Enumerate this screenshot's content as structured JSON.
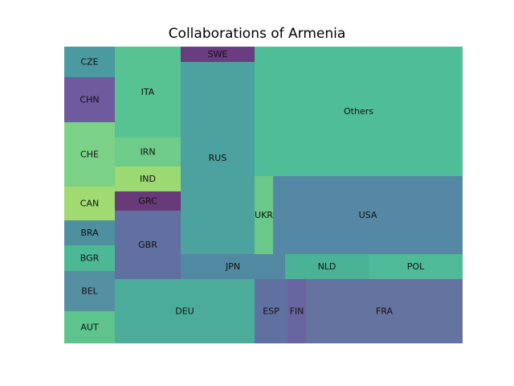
{
  "chart_data": {
    "type": "treemap",
    "title": "Collaborations of Armenia",
    "cells": [
      {
        "label": "CZE",
        "color": "#4a9aa0"
      },
      {
        "label": "CHN",
        "color": "#6e5a9c"
      },
      {
        "label": "CHE",
        "color": "#7bd186"
      },
      {
        "label": "CAN",
        "color": "#a0da70"
      },
      {
        "label": "BRA",
        "color": "#4e90a0"
      },
      {
        "label": "BGR",
        "color": "#4cb895"
      },
      {
        "label": "BEL",
        "color": "#5590a2"
      },
      {
        "label": "AUT",
        "color": "#5cc48c"
      },
      {
        "label": "ITA",
        "color": "#58c392"
      },
      {
        "label": "IRN",
        "color": "#6fcb8a"
      },
      {
        "label": "IND",
        "color": "#9bd972"
      },
      {
        "label": "GRC",
        "color": "#683a7a"
      },
      {
        "label": "GBR",
        "color": "#6170a0"
      },
      {
        "label": "DEU",
        "color": "#4bac99"
      },
      {
        "label": "SWE",
        "color": "#6a3c80"
      },
      {
        "label": "RUS",
        "color": "#4ba29e"
      },
      {
        "label": "JPN",
        "color": "#5189a2"
      },
      {
        "label": "ESP",
        "color": "#6070a0"
      },
      {
        "label": "FIN",
        "color": "#6a64a0"
      },
      {
        "label": "Others",
        "color": "#4fbd98"
      },
      {
        "label": "UKR",
        "color": "#6ac88a"
      },
      {
        "label": "USA",
        "color": "#5588a4"
      },
      {
        "label": "NLD",
        "color": "#4ab396"
      },
      {
        "label": "POL",
        "color": "#4eba97"
      },
      {
        "label": "FRA",
        "color": "#6473a0"
      }
    ]
  }
}
